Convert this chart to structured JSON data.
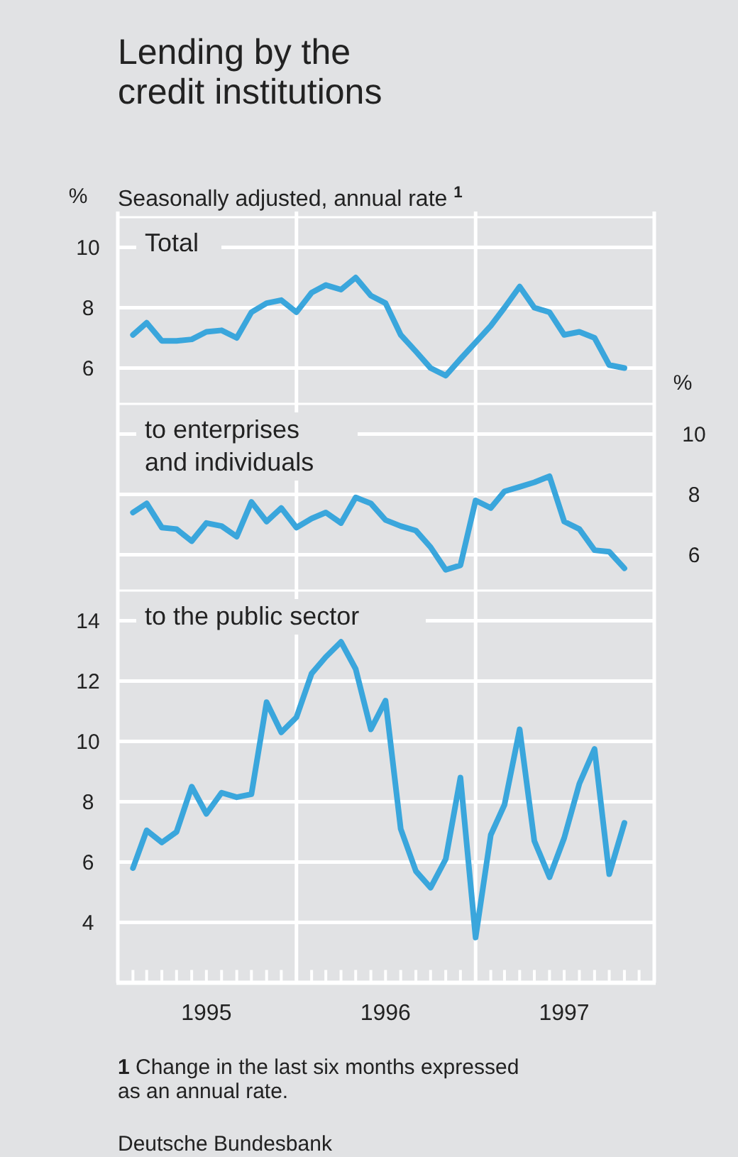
{
  "chart_data": [
    {
      "type": "line",
      "title": "Lending by the\ncredit institutions",
      "subtitle": "Seasonally adjusted, annual rate $^{1}$",
      "ylabel": "%",
      "grid": "y",
      "tick_labels": "y",
      "xlim": [
        "1995-01",
        "1998-01"
      ],
      "ylim": [
        5,
        11
      ],
      "yticks": [
        6,
        8,
        10
      ],
      "ref_lines": [
        {
          "axis": "x",
          "value": "1996-01",
          "color": "#ffffff"
        },
        {
          "axis": "x",
          "value": "1997-01",
          "color": "#ffffff"
        }
      ],
      "x": [
        "1995-02",
        "1995-03",
        "1995-04",
        "1995-05",
        "1995-06",
        "1995-07",
        "1995-08",
        "1995-09",
        "1995-10",
        "1995-11",
        "1995-12",
        "1996-01",
        "1996-02",
        "1996-03",
        "1996-04",
        "1996-05",
        "1996-06",
        "1996-07",
        "1996-08",
        "1996-09",
        "1996-10",
        "1996-11",
        "1996-12",
        "1997-01",
        "1997-02",
        "1997-03",
        "1997-04",
        "1997-05",
        "1997-06",
        "1997-07",
        "1997-08",
        "1997-09",
        "1997-10",
        "1997-11"
      ],
      "series": [
        {
          "name": "Total",
          "color": "#3aa6dc",
          "values": [
            7.1,
            7.5,
            6.9,
            6.9,
            6.95,
            7.2,
            7.25,
            7.0,
            7.85,
            8.15,
            8.25,
            7.85,
            8.5,
            8.75,
            8.6,
            9.0,
            8.4,
            8.15,
            7.1,
            6.55,
            6.0,
            5.75,
            6.3,
            6.85,
            7.4,
            8.0,
            8.7,
            8.0,
            7.85,
            7.1,
            7.2,
            7.0,
            6.1,
            6.0
          ]
        }
      ]
    },
    {
      "type": "line",
      "y2label": "%",
      "grid": "y",
      "tick_labels": "y",
      "xlim": [
        "1995-01",
        "1998-01"
      ],
      "y2lim": [
        5,
        11
      ],
      "y2ticks": [
        6,
        8,
        10
      ],
      "ref_lines": [
        {
          "axis": "x",
          "value": "1996-01",
          "color": "#ffffff"
        },
        {
          "axis": "x",
          "value": "1997-01",
          "color": "#ffffff"
        }
      ],
      "x": [
        "1995-02",
        "1995-03",
        "1995-04",
        "1995-05",
        "1995-06",
        "1995-07",
        "1995-08",
        "1995-09",
        "1995-10",
        "1995-11",
        "1995-12",
        "1996-01",
        "1996-02",
        "1996-03",
        "1996-04",
        "1996-05",
        "1996-06",
        "1996-07",
        "1996-08",
        "1996-09",
        "1996-10",
        "1996-11",
        "1996-12",
        "1997-01",
        "1997-02",
        "1997-03",
        "1997-04",
        "1997-05",
        "1997-06",
        "1997-07",
        "1997-08",
        "1997-09",
        "1997-10",
        "1997-11"
      ],
      "series": [
        {
          "name": "to enterprises\nand individuals",
          "axis": "y2",
          "color": "#3aa6dc",
          "values": [
            7.4,
            7.7,
            6.9,
            6.85,
            6.45,
            7.05,
            6.95,
            6.6,
            7.75,
            7.1,
            7.55,
            6.9,
            7.2,
            7.4,
            7.05,
            7.9,
            7.7,
            7.15,
            6.95,
            6.8,
            6.25,
            5.5,
            5.65,
            7.8,
            7.55,
            8.1,
            8.25,
            8.4,
            8.6,
            7.1,
            6.85,
            6.15,
            6.1,
            5.55
          ]
        }
      ]
    },
    {
      "type": "line",
      "grid": "y",
      "xlim": [
        "1995-01",
        "1998-01"
      ],
      "ylim": [
        2,
        15
      ],
      "yticks": [
        4,
        6,
        8,
        10,
        12,
        14
      ],
      "xticks": [
        {
          "value": "1995-01",
          "label": null
        },
        {
          "value": "1995-02",
          "label": null
        },
        {
          "value": "1995-03",
          "label": null
        },
        {
          "value": "1995-04",
          "label": null
        },
        {
          "value": "1995-05",
          "label": null
        },
        {
          "value": "1995-06",
          "label": null
        },
        {
          "value": "1995-07",
          "label": "1995"
        },
        {
          "value": "1995-08",
          "label": null
        },
        {
          "value": "1995-09",
          "label": null
        },
        {
          "value": "1995-10",
          "label": null
        },
        {
          "value": "1995-11",
          "label": null
        },
        {
          "value": "1995-12",
          "label": null
        },
        {
          "value": "1996-01",
          "label": null
        },
        {
          "value": "1996-02",
          "label": null
        },
        {
          "value": "1996-03",
          "label": null
        },
        {
          "value": "1996-04",
          "label": null
        },
        {
          "value": "1996-05",
          "label": null
        },
        {
          "value": "1996-06",
          "label": null
        },
        {
          "value": "1996-07",
          "label": "1996"
        },
        {
          "value": "1996-08",
          "label": null
        },
        {
          "value": "1996-09",
          "label": null
        },
        {
          "value": "1996-10",
          "label": null
        },
        {
          "value": "1996-11",
          "label": null
        },
        {
          "value": "1996-12",
          "label": null
        },
        {
          "value": "1997-01",
          "label": null
        },
        {
          "value": "1997-02",
          "label": null
        },
        {
          "value": "1997-03",
          "label": null
        },
        {
          "value": "1997-04",
          "label": null
        },
        {
          "value": "1997-05",
          "label": null
        },
        {
          "value": "1997-06",
          "label": null
        },
        {
          "value": "1997-07",
          "label": "1997"
        },
        {
          "value": "1997-08",
          "label": null
        },
        {
          "value": "1997-09",
          "label": null
        },
        {
          "value": "1997-10",
          "label": null
        },
        {
          "value": "1997-11",
          "label": null
        },
        {
          "value": "1997-12",
          "label": null
        },
        {
          "value": "1998-01",
          "label": null
        }
      ],
      "ref_lines": [
        {
          "axis": "x",
          "value": "1996-01",
          "color": "#ffffff"
        },
        {
          "axis": "x",
          "value": "1997-01",
          "color": "#ffffff"
        }
      ],
      "x": [
        "1995-02",
        "1995-03",
        "1995-04",
        "1995-05",
        "1995-06",
        "1995-07",
        "1995-08",
        "1995-09",
        "1995-10",
        "1995-11",
        "1995-12",
        "1996-01",
        "1996-02",
        "1996-03",
        "1996-04",
        "1996-05",
        "1996-06",
        "1996-07",
        "1996-08",
        "1996-09",
        "1996-10",
        "1996-11",
        "1996-12",
        "1997-01",
        "1997-02",
        "1997-03",
        "1997-04",
        "1997-05",
        "1997-06",
        "1997-07",
        "1997-08",
        "1997-09",
        "1997-10",
        "1997-11"
      ],
      "series": [
        {
          "name": "to the public sector",
          "color": "#3aa6dc",
          "values": [
            5.8,
            7.05,
            6.65,
            7.0,
            8.5,
            7.6,
            8.3,
            8.15,
            8.25,
            11.3,
            10.3,
            10.8,
            12.25,
            12.8,
            13.3,
            12.4,
            10.4,
            11.35,
            7.1,
            5.7,
            5.15,
            6.1,
            8.8,
            3.5,
            6.9,
            7.9,
            10.4,
            6.7,
            5.5,
            6.8,
            8.6,
            9.75,
            5.6,
            7.3
          ]
        }
      ],
      "annotations": [
        "1 Change in the last six months expressed\nas an annual rate.",
        "Deutsche Bundesbank"
      ]
    }
  ]
}
